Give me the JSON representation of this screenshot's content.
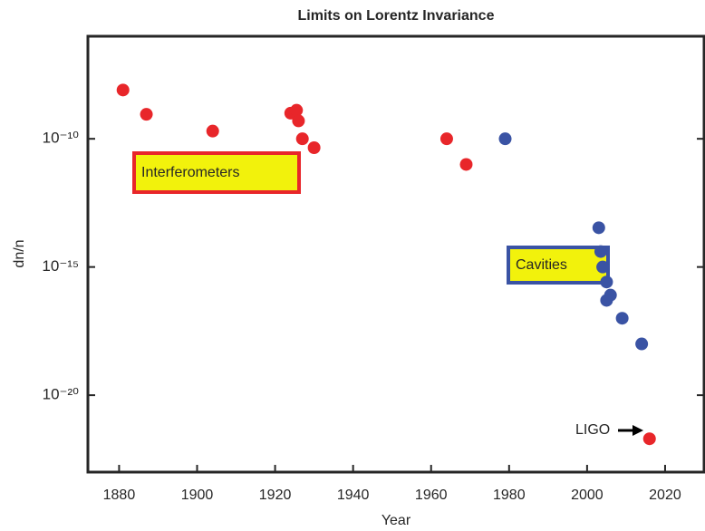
{
  "chart_data": {
    "type": "scatter",
    "title": "Limits on Lorentz Invariance",
    "xlabel": "Year",
    "ylabel": "dn/n",
    "log_y": true,
    "xlim": [
      1872,
      2030
    ],
    "xticks": [
      1880,
      1900,
      1920,
      1940,
      1960,
      1980,
      2000,
      2020
    ],
    "ylim": [
      1e-23,
      1e-06
    ],
    "yticks": [
      {
        "value": 1e-20,
        "label": "10⁻²⁰"
      },
      {
        "value": 1e-15,
        "label": "10⁻¹⁵"
      },
      {
        "value": 1e-10,
        "label": "10⁻¹⁰"
      }
    ],
    "series": [
      {
        "color": "#e8262a",
        "x": [
          1881,
          1887,
          1904,
          1924,
          1925.5,
          1926,
          1927,
          1930,
          1964,
          1969,
          2016
        ],
        "values": [
          8e-09,
          9e-10,
          2e-10,
          1e-09,
          1.3e-09,
          5e-10,
          1e-10,
          4.5e-11,
          1e-10,
          1e-11,
          2e-22
        ]
      },
      {
        "color": "#3a53a4",
        "x": [
          1979,
          2003,
          2003.5,
          2004,
          2005,
          2006,
          2005,
          2009,
          2014
        ],
        "values": [
          1e-10,
          3.4e-14,
          4e-15,
          1e-15,
          2.6e-16,
          8e-17,
          5e-17,
          1e-17,
          1e-18
        ]
      }
    ],
    "annotations": [
      "Interferometers",
      "Cavities",
      "LIGO"
    ]
  }
}
